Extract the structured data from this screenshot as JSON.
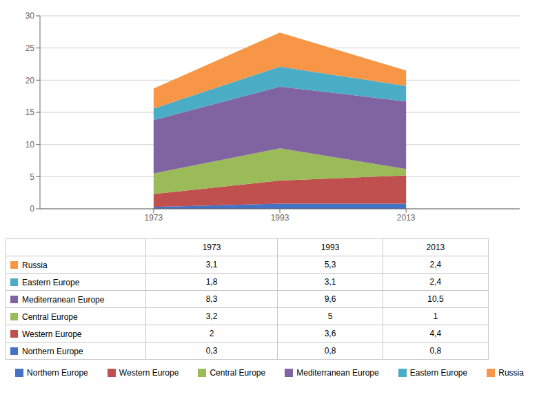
{
  "chart_data": {
    "type": "area",
    "stacked": true,
    "grid": true,
    "x": [
      1973,
      1993,
      2013
    ],
    "xlim": [
      1955,
      2031
    ],
    "xticks": [
      1973,
      1993,
      2013
    ],
    "ylim": [
      0,
      30
    ],
    "yticks": [
      0,
      5,
      10,
      15,
      20,
      25,
      30
    ],
    "series": [
      {
        "name": "Northern Europe",
        "color": "#4472C4",
        "values": [
          0.3,
          0.8,
          0.8
        ],
        "value_labels": [
          "0,3",
          "0,8",
          "0,8"
        ]
      },
      {
        "name": "Western Europe",
        "color": "#C0504D",
        "values": [
          2.0,
          3.6,
          4.4
        ],
        "value_labels": [
          "2",
          "3,6",
          "4,4"
        ]
      },
      {
        "name": "Central Europe",
        "color": "#9BBB59",
        "values": [
          3.2,
          5.0,
          1.0
        ],
        "value_labels": [
          "3,2",
          "5",
          "1"
        ]
      },
      {
        "name": "Mediterranean Europe",
        "color": "#8064A2",
        "values": [
          8.3,
          9.6,
          10.5
        ],
        "value_labels": [
          "8,3",
          "9,6",
          "10,5"
        ]
      },
      {
        "name": "Eastern Europe",
        "color": "#4BACC6",
        "values": [
          1.8,
          3.1,
          2.4
        ],
        "value_labels": [
          "1,8",
          "3,1",
          "2,4"
        ]
      },
      {
        "name": "Russia",
        "color": "#F79646",
        "values": [
          3.1,
          5.3,
          2.4
        ],
        "value_labels": [
          "3,1",
          "5,3",
          "2,4"
        ]
      }
    ]
  }
}
